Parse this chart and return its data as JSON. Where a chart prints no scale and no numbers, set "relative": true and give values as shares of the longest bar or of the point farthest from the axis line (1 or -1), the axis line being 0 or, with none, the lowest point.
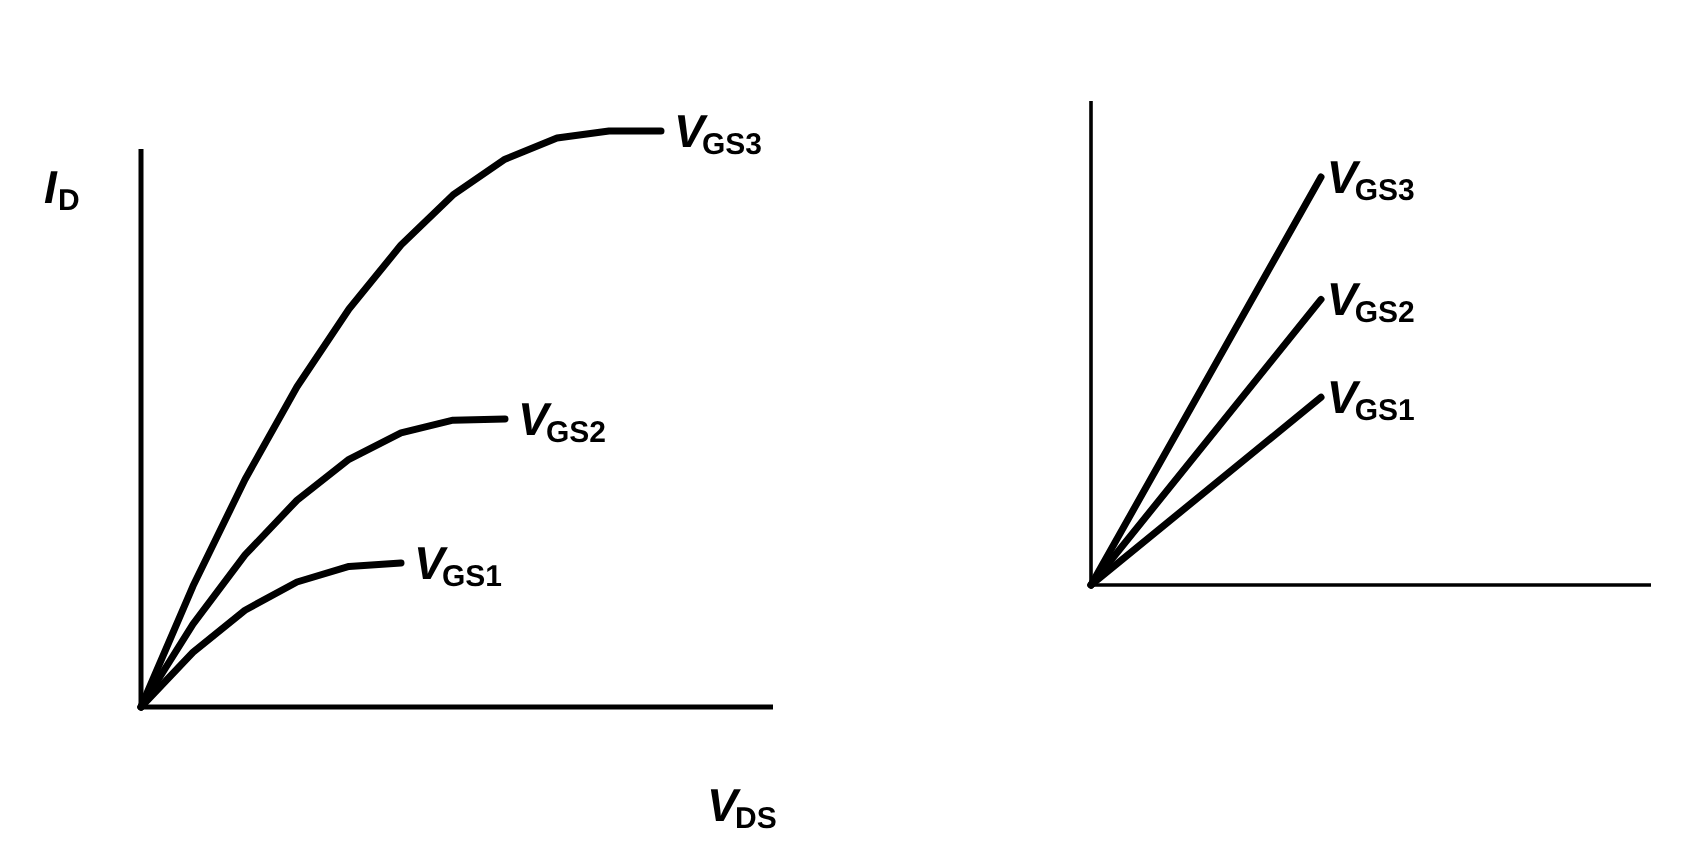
{
  "chart_data": [
    {
      "type": "line",
      "xlabel": "V$_{DS}$",
      "ylabel": "I$_{D}$",
      "relative": true,
      "categories": [
        null,
        null,
        null,
        null,
        null,
        null,
        null,
        null,
        null,
        null,
        null
      ],
      "series": [
        {
          "name": "V$_{GS1}$",
          "color": "#000000",
          "values": [
            0,
            0.095,
            0.168,
            0.217,
            0.244,
            0.25,
            null,
            null,
            null,
            null,
            null
          ]
        },
        {
          "name": "V$_{GS2}$",
          "color": "#000000",
          "values": [
            0,
            0.144,
            0.264,
            0.359,
            0.43,
            0.476,
            0.498,
            0.5,
            null,
            null,
            null
          ]
        },
        {
          "name": "V$_{GS3}$",
          "color": "#000000",
          "values": [
            0,
            0.21,
            0.395,
            0.556,
            0.691,
            0.802,
            0.889,
            0.951,
            0.988,
            1.0,
            1.0
          ]
        }
      ]
    },
    {
      "type": "line",
      "relative": true,
      "categories": [
        null,
        null
      ],
      "series": [
        {
          "name": "V$_{GS1}$",
          "color": "#000000",
          "values": [
            0,
            0.46
          ]
        },
        {
          "name": "V$_{GS2}$",
          "color": "#000000",
          "values": [
            0,
            0.7
          ]
        },
        {
          "name": "V$_{GS3}$",
          "color": "#000000",
          "values": [
            0,
            1
          ]
        }
      ]
    }
  ]
}
